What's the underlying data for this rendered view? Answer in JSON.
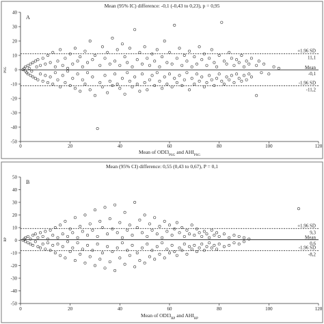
{
  "chart_data": [
    {
      "type": "scatter",
      "panel_label": "A",
      "title": "Mean (95% IC) difference: -0,1 (-0,43 to 0,23), p = 0,95",
      "xlabel": {
        "pre": "Mean of ODI3",
        "sub1": "PSG",
        "mid": " and AHI",
        "sub2": "PSG"
      },
      "ylabel_tag": "PSG",
      "xlim": [
        0,
        120
      ],
      "ylim": [
        -50,
        40
      ],
      "xticks": [
        "0",
        "20",
        "40",
        "60",
        "80",
        "100",
        "120"
      ],
      "yticks": [
        "40",
        "30",
        "20",
        "10",
        "0",
        "-10",
        "-20",
        "-30",
        "-40",
        "-50"
      ],
      "lines": {
        "mean": -0.1,
        "upper": 11.1,
        "lower": -11.2
      },
      "labels": {
        "upper": "+1.96 SD",
        "upper_val": "11,1",
        "mean": "Mean",
        "mean_val": "-0,1",
        "lower": "-1.96 SD",
        "lower_val": "-11,2"
      },
      "grid": false,
      "points": [
        [
          1,
          0
        ],
        [
          1.5,
          1
        ],
        [
          2,
          -1
        ],
        [
          2,
          2
        ],
        [
          2.5,
          -2
        ],
        [
          3,
          3
        ],
        [
          3,
          -3
        ],
        [
          3.5,
          1
        ],
        [
          4,
          4
        ],
        [
          4,
          -4
        ],
        [
          4.5,
          -1
        ],
        [
          5,
          5
        ],
        [
          5,
          -5
        ],
        [
          6,
          6
        ],
        [
          6,
          -6
        ],
        [
          6.5,
          2
        ],
        [
          7,
          -7
        ],
        [
          7,
          7
        ],
        [
          8,
          3
        ],
        [
          8,
          -3
        ],
        [
          9,
          8
        ],
        [
          9,
          -8
        ],
        [
          10,
          4
        ],
        [
          10,
          -4
        ],
        [
          11,
          10
        ],
        [
          11,
          -9
        ],
        [
          12,
          5
        ],
        [
          12,
          -5
        ],
        [
          13,
          12
        ],
        [
          13,
          -10
        ],
        [
          14,
          2
        ],
        [
          14,
          -2
        ],
        [
          15,
          6
        ],
        [
          15,
          -7
        ],
        [
          16,
          14
        ],
        [
          16,
          -12
        ],
        [
          17,
          3
        ],
        [
          17,
          -4
        ],
        [
          18,
          8
        ],
        [
          18,
          -9
        ],
        [
          19,
          1
        ],
        [
          19,
          -1
        ],
        [
          20,
          11
        ],
        [
          20,
          -11
        ],
        [
          21,
          4
        ],
        [
          21,
          -6
        ],
        [
          22,
          15
        ],
        [
          22,
          -13
        ],
        [
          23,
          6
        ],
        [
          23,
          -3
        ],
        [
          24,
          9
        ],
        [
          24,
          -15
        ],
        [
          25,
          2
        ],
        [
          25,
          -7
        ],
        [
          26,
          13
        ],
        [
          26,
          -10
        ],
        [
          27,
          5
        ],
        [
          27,
          -2
        ],
        [
          28,
          20
        ],
        [
          28,
          -14
        ],
        [
          29,
          7
        ],
        [
          29,
          -5
        ],
        [
          30,
          10
        ],
        [
          30,
          -18
        ],
        [
          31,
          -41
        ],
        [
          32,
          3
        ],
        [
          32,
          -9
        ],
        [
          33,
          16
        ],
        [
          33,
          -12
        ],
        [
          34,
          8
        ],
        [
          34,
          -4
        ],
        [
          35,
          12
        ],
        [
          35,
          -16
        ],
        [
          36,
          4
        ],
        [
          36,
          -8
        ],
        [
          37,
          22
        ],
        [
          37,
          -11
        ],
        [
          38,
          6
        ],
        [
          38,
          -3
        ],
        [
          39,
          14
        ],
        [
          39,
          -10
        ],
        [
          40,
          3
        ],
        [
          40,
          -13
        ],
        [
          41,
          18
        ],
        [
          41,
          -6
        ],
        [
          42,
          9
        ],
        [
          42,
          -17
        ],
        [
          43,
          5
        ],
        [
          43,
          -2
        ],
        [
          44,
          15
        ],
        [
          44,
          -8
        ],
        [
          45,
          2
        ],
        [
          45,
          -12
        ],
        [
          46,
          28
        ],
        [
          46,
          -5
        ],
        [
          47,
          7
        ],
        [
          47,
          -10
        ],
        [
          48,
          12
        ],
        [
          48,
          -15
        ],
        [
          49,
          4
        ],
        [
          49,
          -3
        ],
        [
          50,
          16
        ],
        [
          50,
          -9
        ],
        [
          51,
          8
        ],
        [
          51,
          -14
        ],
        [
          52,
          3
        ],
        [
          52,
          -7
        ],
        [
          53,
          11
        ],
        [
          53,
          -4
        ],
        [
          54,
          6
        ],
        [
          54,
          -11
        ],
        [
          55,
          14
        ],
        [
          55,
          -2
        ],
        [
          56,
          2
        ],
        [
          56,
          -8
        ],
        [
          57,
          9
        ],
        [
          57,
          -13
        ],
        [
          58,
          20
        ],
        [
          58,
          -5
        ],
        [
          59,
          5
        ],
        [
          59,
          -10
        ],
        [
          60,
          12
        ],
        [
          60,
          -3
        ],
        [
          61,
          4
        ],
        [
          61,
          -12
        ],
        [
          62,
          31
        ],
        [
          62,
          -6
        ],
        [
          63,
          8
        ],
        [
          63,
          -9
        ],
        [
          64,
          15
        ],
        [
          64,
          -4
        ],
        [
          65,
          3
        ],
        [
          65,
          -11
        ],
        [
          66,
          10
        ],
        [
          66,
          -7
        ],
        [
          67,
          6
        ],
        [
          67,
          -2
        ],
        [
          68,
          13
        ],
        [
          68,
          -14
        ],
        [
          69,
          2
        ],
        [
          69,
          -6
        ],
        [
          70,
          9
        ],
        [
          70,
          -10
        ],
        [
          71,
          4
        ],
        [
          71,
          -3
        ],
        [
          72,
          16
        ],
        [
          72,
          -8
        ],
        [
          73,
          7
        ],
        [
          73,
          -5
        ],
        [
          74,
          11
        ],
        [
          74,
          -12
        ],
        [
          75,
          3
        ],
        [
          75,
          -9
        ],
        [
          76,
          8
        ],
        [
          76,
          -4
        ],
        [
          77,
          14
        ],
        [
          77,
          -7
        ],
        [
          78,
          5
        ],
        [
          78,
          -11
        ],
        [
          79,
          2
        ],
        [
          79,
          -6
        ],
        [
          80,
          10
        ],
        [
          80,
          -3
        ],
        [
          81,
          33
        ],
        [
          81,
          -8
        ],
        [
          82,
          6
        ],
        [
          82,
          -10
        ],
        [
          83,
          4
        ],
        [
          83,
          -5
        ],
        [
          84,
          12
        ],
        [
          84,
          -7
        ],
        [
          85,
          8
        ],
        [
          85,
          -4
        ],
        [
          86,
          3
        ],
        [
          86,
          -9
        ],
        [
          87,
          7
        ],
        [
          87,
          -3
        ],
        [
          88,
          5
        ],
        [
          88,
          -6
        ],
        [
          89,
          10
        ],
        [
          89,
          -8
        ],
        [
          90,
          2
        ],
        [
          90,
          -4
        ],
        [
          91,
          6
        ],
        [
          91,
          -7
        ],
        [
          92,
          4
        ],
        [
          92,
          -3
        ],
        [
          93,
          8
        ],
        [
          93,
          -5
        ],
        [
          95,
          3
        ],
        [
          95,
          -18
        ],
        [
          96,
          6
        ],
        [
          97,
          -2
        ],
        [
          98,
          4
        ],
        [
          100,
          -3
        ],
        [
          102,
          2
        ],
        [
          104,
          1
        ]
      ]
    },
    {
      "type": "scatter",
      "panel_label": "B",
      "title": "Mean (95% CI) difference: 0,55 (0,43 to 0,67), P = 0,1",
      "xlabel": {
        "pre": "Mean of ODI3",
        "sub1": "RP",
        "mid": " and AHI",
        "sub2": "RP"
      },
      "ylabel_tag": "RP",
      "xlim": [
        0,
        120
      ],
      "ylim": [
        -50,
        50
      ],
      "xticks": [
        "0",
        "20",
        "40",
        "60",
        "80",
        "100",
        "120"
      ],
      "yticks": [
        "50",
        "40",
        "30",
        "20",
        "10",
        "0",
        "-10",
        "-20",
        "-30",
        "-40",
        "-50"
      ],
      "lines": {
        "mean": 0.6,
        "upper": 9.3,
        "lower": -8.2
      },
      "labels": {
        "upper": "+1.96 SD",
        "upper_val": "9,3",
        "mean": "Mean",
        "mean_val": "0,6",
        "lower": "-1.96 SD",
        "lower_val": "-8,2"
      },
      "grid": false,
      "points": [
        [
          1,
          0
        ],
        [
          1.5,
          1
        ],
        [
          2,
          -1
        ],
        [
          2,
          2
        ],
        [
          3,
          -2
        ],
        [
          3,
          3
        ],
        [
          4,
          -3
        ],
        [
          4,
          1
        ],
        [
          5,
          4
        ],
        [
          5,
          -4
        ],
        [
          6,
          -1
        ],
        [
          6,
          5
        ],
        [
          7,
          -5
        ],
        [
          7,
          2
        ],
        [
          8,
          6
        ],
        [
          8,
          -6
        ],
        [
          9,
          3
        ],
        [
          9,
          -3
        ],
        [
          10,
          7
        ],
        [
          10,
          -7
        ],
        [
          11,
          1
        ],
        [
          11,
          -2
        ],
        [
          12,
          8
        ],
        [
          12,
          -8
        ],
        [
          13,
          4
        ],
        [
          13,
          -4
        ],
        [
          14,
          10
        ],
        [
          14,
          -10
        ],
        [
          15,
          2
        ],
        [
          15,
          -3
        ],
        [
          16,
          12
        ],
        [
          16,
          -12
        ],
        [
          17,
          5
        ],
        [
          17,
          -5
        ],
        [
          18,
          15
        ],
        [
          18,
          -14
        ],
        [
          19,
          3
        ],
        [
          19,
          -1
        ],
        [
          20,
          9
        ],
        [
          20,
          -9
        ],
        [
          21,
          6
        ],
        [
          21,
          -6
        ],
        [
          22,
          18
        ],
        [
          22,
          -16
        ],
        [
          23,
          2
        ],
        [
          23,
          -2
        ],
        [
          24,
          11
        ],
        [
          24,
          -11
        ],
        [
          25,
          7
        ],
        [
          25,
          -7
        ],
        [
          26,
          20
        ],
        [
          26,
          -18
        ],
        [
          27,
          4
        ],
        [
          27,
          -4
        ],
        [
          28,
          13
        ],
        [
          28,
          -13
        ],
        [
          29,
          8
        ],
        [
          29,
          -8
        ],
        [
          30,
          24
        ],
        [
          30,
          -20
        ],
        [
          31,
          3
        ],
        [
          31,
          -3
        ],
        [
          32,
          15
        ],
        [
          32,
          -15
        ],
        [
          33,
          10
        ],
        [
          33,
          -10
        ],
        [
          34,
          26
        ],
        [
          34,
          -22
        ],
        [
          35,
          5
        ],
        [
          35,
          -5
        ],
        [
          36,
          17
        ],
        [
          36,
          -17
        ],
        [
          37,
          9
        ],
        [
          37,
          -9
        ],
        [
          38,
          28
        ],
        [
          38,
          -24
        ],
        [
          39,
          6
        ],
        [
          39,
          -6
        ],
        [
          40,
          14
        ],
        [
          40,
          -14
        ],
        [
          41,
          2
        ],
        [
          41,
          -2
        ],
        [
          42,
          22
        ],
        [
          42,
          -19
        ],
        [
          43,
          8
        ],
        [
          43,
          -8
        ],
        [
          44,
          12
        ],
        [
          44,
          -12
        ],
        [
          45,
          4
        ],
        [
          45,
          -4
        ],
        [
          46,
          30
        ],
        [
          46,
          -21
        ],
        [
          47,
          10
        ],
        [
          47,
          -10
        ],
        [
          48,
          16
        ],
        [
          48,
          -16
        ],
        [
          49,
          6
        ],
        [
          49,
          -6
        ],
        [
          50,
          20
        ],
        [
          50,
          -18
        ],
        [
          51,
          3
        ],
        [
          51,
          -3
        ],
        [
          52,
          13
        ],
        [
          52,
          -13
        ],
        [
          53,
          8
        ],
        [
          53,
          -8
        ],
        [
          54,
          18
        ],
        [
          54,
          -15
        ],
        [
          55,
          5
        ],
        [
          55,
          -5
        ],
        [
          56,
          11
        ],
        [
          56,
          -11
        ],
        [
          57,
          2
        ],
        [
          57,
          -2
        ],
        [
          58,
          15
        ],
        [
          58,
          -14
        ],
        [
          59,
          7
        ],
        [
          59,
          -7
        ],
        [
          60,
          12
        ],
        [
          60,
          -10
        ],
        [
          61,
          4
        ],
        [
          61,
          -4
        ],
        [
          62,
          9
        ],
        [
          62,
          -9
        ],
        [
          63,
          14
        ],
        [
          63,
          -12
        ],
        [
          64,
          6
        ],
        [
          64,
          -6
        ],
        [
          65,
          10
        ],
        [
          65,
          -8
        ],
        [
          66,
          3
        ],
        [
          66,
          -3
        ],
        [
          67,
          8
        ],
        [
          67,
          -11
        ],
        [
          68,
          5
        ],
        [
          68,
          -5
        ],
        [
          69,
          12
        ],
        [
          69,
          -7
        ],
        [
          70,
          4
        ],
        [
          70,
          -4
        ],
        [
          71,
          9
        ],
        [
          71,
          -9
        ],
        [
          72,
          6
        ],
        [
          72,
          -6
        ],
        [
          73,
          3
        ],
        [
          73,
          -3
        ],
        [
          74,
          7
        ],
        [
          74,
          -8
        ],
        [
          75,
          5
        ],
        [
          75,
          -5
        ],
        [
          76,
          2
        ],
        [
          76,
          -2
        ],
        [
          77,
          8
        ],
        [
          77,
          -6
        ],
        [
          78,
          4
        ],
        [
          78,
          -4
        ],
        [
          79,
          6
        ],
        [
          79,
          -7
        ],
        [
          80,
          3
        ],
        [
          80,
          -3
        ],
        [
          82,
          5
        ],
        [
          82,
          -5
        ],
        [
          84,
          2
        ],
        [
          84,
          -4
        ],
        [
          86,
          4
        ],
        [
          86,
          -2
        ],
        [
          88,
          3
        ],
        [
          88,
          -3
        ],
        [
          90,
          2
        ],
        [
          90,
          -1
        ],
        [
          92,
          1
        ],
        [
          112,
          25
        ]
      ]
    }
  ]
}
